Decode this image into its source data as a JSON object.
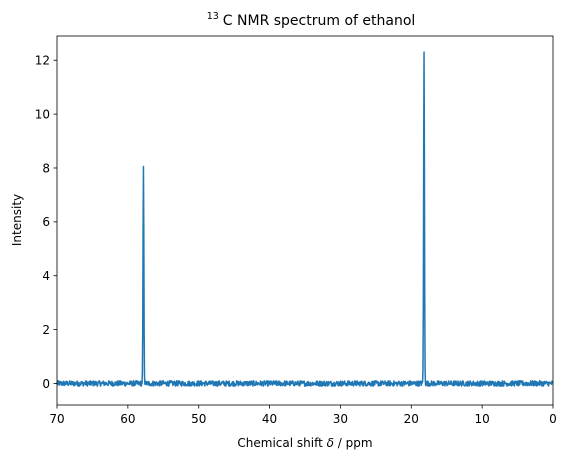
{
  "chart_data": {
    "type": "line",
    "title": {
      "superscript": "13",
      "text": "C NMR spectrum of ethanol"
    },
    "xlabel": {
      "prefix": "Chemical shift ",
      "symbol": "δ",
      "suffix": " / ppm"
    },
    "ylabel": "Intensity",
    "xlim": [
      70,
      0
    ],
    "ylim": [
      -0.8,
      12.9
    ],
    "x_reversed": true,
    "xticks": [
      70,
      60,
      50,
      40,
      30,
      20,
      10,
      0
    ],
    "yticks": [
      0,
      2,
      4,
      6,
      8,
      10,
      12
    ],
    "grid": false,
    "legend": null,
    "line_color": "#1f77b4",
    "noise_amplitude": 0.1,
    "peaks": [
      {
        "x": 57.8,
        "y": 8.05
      },
      {
        "x": 18.2,
        "y": 12.3
      }
    ]
  }
}
